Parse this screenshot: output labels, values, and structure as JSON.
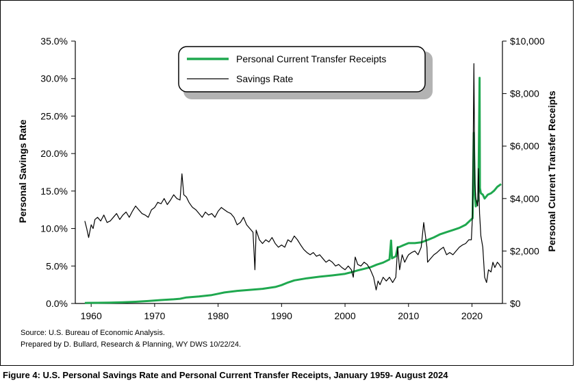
{
  "colors": {
    "transfers": "#1fa84f",
    "savings": "#000000",
    "legend_shadow": "#9a9a9a"
  },
  "source_line1": "Source: U.S. Bureau of Economic Analysis.",
  "source_line2": "Prepared by D. Bullard, Research & Planning, WY DWS 10/22/24.",
  "caption": "Figure 4: U.S. Personal Savings Rate and Personal Current Transfer Receipts, January 1959- August 2024",
  "chart_data": {
    "type": "line",
    "title": "",
    "xlabel": "",
    "ylabel": "Personal Savings Rate",
    "y2label": "Personal Current Transfer Receipts",
    "xlim": [
      1957.5,
      2024.8
    ],
    "ylim": [
      0,
      35
    ],
    "y2lim": [
      0,
      10000
    ],
    "grid": false,
    "legend_position": "top-center",
    "x_tick_labels": [
      "1960",
      "1970",
      "1980",
      "1990",
      "2000",
      "2010",
      "2020"
    ],
    "x_tick_values": [
      1960,
      1970,
      1980,
      1990,
      2000,
      2010,
      2020
    ],
    "y_tick_labels": [
      "0.0%",
      "5.0%",
      "10.0%",
      "15.0%",
      "20.0%",
      "25.0%",
      "30.0%",
      "35.0%"
    ],
    "y_tick_values": [
      0,
      5,
      10,
      15,
      20,
      25,
      30,
      35
    ],
    "y2_tick_labels": [
      "$0",
      "$2,000",
      "$4,000",
      "$6,000",
      "$8,000",
      "$10,000"
    ],
    "y2_tick_values": [
      0,
      2000,
      4000,
      6000,
      8000,
      10000
    ],
    "series": [
      {
        "name": "Personal Current Transfer Receipts",
        "axis": "right",
        "x": [
          1959.0,
          1961.0,
          1963.0,
          1965.0,
          1967.0,
          1969.0,
          1971.0,
          1973.0,
          1974.0,
          1975.0,
          1977.0,
          1979.0,
          1980.0,
          1981.0,
          1983.0,
          1985.0,
          1987.0,
          1989.0,
          1990.0,
          1991.0,
          1992.0,
          1994.0,
          1996.0,
          1998.0,
          2000.0,
          2001.0,
          2002.0,
          2003.0,
          2004.0,
          2005.0,
          2006.0,
          2007.0,
          2007.25,
          2007.4,
          2008.0,
          2008.3,
          2008.5,
          2009.0,
          2010.0,
          2011.0,
          2012.0,
          2013.0,
          2014.0,
          2015.0,
          2016.0,
          2017.0,
          2018.0,
          2019.0,
          2020.1,
          2020.28,
          2020.45,
          2020.6,
          2020.9,
          2021.0,
          2021.2,
          2021.25,
          2021.4,
          2021.7,
          2022.0,
          2022.5,
          2023.0,
          2023.5,
          2024.0,
          2024.6
        ],
        "y": [
          20,
          25,
          35,
          45,
          65,
          95,
          130,
          160,
          180,
          230,
          270,
          320,
          370,
          420,
          480,
          520,
          560,
          630,
          700,
          800,
          880,
          960,
          1020,
          1070,
          1130,
          1190,
          1260,
          1320,
          1380,
          1480,
          1560,
          1680,
          2400,
          1720,
          1800,
          2150,
          2150,
          2200,
          2300,
          2300,
          2330,
          2420,
          2520,
          2640,
          2720,
          2800,
          2880,
          3000,
          3250,
          6500,
          4200,
          3700,
          3900,
          3950,
          8600,
          4400,
          4200,
          4150,
          4000,
          4150,
          4200,
          4300,
          4450,
          4550
        ]
      },
      {
        "name": "Savings Rate",
        "axis": "left",
        "x": [
          1959.0,
          1959.3,
          1959.6,
          1960.0,
          1960.3,
          1960.6,
          1961.0,
          1961.5,
          1962.0,
          1962.5,
          1963.0,
          1963.5,
          1964.0,
          1964.5,
          1965.0,
          1965.5,
          1966.0,
          1966.5,
          1967.0,
          1967.5,
          1968.0,
          1968.5,
          1969.0,
          1969.5,
          1970.0,
          1970.5,
          1971.0,
          1971.5,
          1972.0,
          1972.5,
          1973.0,
          1973.5,
          1974.0,
          1974.3,
          1974.6,
          1975.0,
          1975.4,
          1975.8,
          1976.0,
          1976.5,
          1977.0,
          1977.5,
          1978.0,
          1978.5,
          1979.0,
          1979.5,
          1980.0,
          1980.5,
          1981.0,
          1981.5,
          1982.0,
          1982.5,
          1983.0,
          1983.5,
          1984.0,
          1984.5,
          1985.0,
          1985.5,
          1985.8,
          1986.0,
          1986.5,
          1987.0,
          1987.5,
          1988.0,
          1988.5,
          1989.0,
          1989.5,
          1990.0,
          1990.5,
          1991.0,
          1991.5,
          1992.0,
          1992.5,
          1993.0,
          1993.5,
          1994.0,
          1994.5,
          1995.0,
          1995.5,
          1996.0,
          1996.5,
          1997.0,
          1997.5,
          1998.0,
          1998.5,
          1999.0,
          1999.5,
          2000.0,
          2000.5,
          2001.0,
          2001.3,
          2001.6,
          2002.0,
          2002.5,
          2003.0,
          2003.5,
          2004.0,
          2004.5,
          2004.9,
          2005.2,
          2005.5,
          2006.0,
          2006.5,
          2007.0,
          2007.5,
          2008.0,
          2008.3,
          2008.6,
          2009.0,
          2009.4,
          2009.8,
          2010.0,
          2010.5,
          2011.0,
          2011.5,
          2012.0,
          2012.4,
          2012.9,
          2013.0,
          2013.5,
          2014.0,
          2014.5,
          2015.0,
          2015.5,
          2016.0,
          2016.5,
          2017.0,
          2017.5,
          2018.0,
          2018.5,
          2019.0,
          2019.5,
          2019.9,
          2020.1,
          2020.3,
          2020.45,
          2020.6,
          2020.9,
          2021.0,
          2021.2,
          2021.4,
          2021.7,
          2022.0,
          2022.3,
          2022.6,
          2023.0,
          2023.3,
          2023.6,
          2024.0,
          2024.3,
          2024.6
        ],
        "y": [
          11.0,
          10.0,
          8.8,
          10.5,
          10.0,
          11.2,
          11.5,
          11.0,
          11.8,
          10.8,
          11.0,
          11.5,
          12.0,
          11.2,
          11.8,
          12.2,
          11.5,
          12.3,
          13.0,
          12.5,
          12.0,
          11.8,
          11.5,
          12.5,
          12.8,
          13.5,
          13.3,
          14.0,
          13.2,
          13.8,
          14.5,
          14.0,
          13.8,
          17.3,
          14.5,
          14.2,
          13.5,
          13.0,
          12.8,
          12.5,
          12.0,
          11.5,
          12.2,
          11.8,
          12.0,
          11.5,
          12.3,
          12.8,
          12.5,
          12.2,
          12.0,
          11.5,
          10.5,
          10.8,
          11.5,
          10.5,
          10.0,
          9.5,
          4.5,
          9.8,
          8.5,
          8.0,
          8.5,
          8.2,
          8.8,
          8.0,
          7.5,
          7.8,
          7.5,
          8.5,
          8.2,
          9.0,
          8.5,
          7.8,
          7.2,
          6.8,
          6.5,
          6.8,
          6.3,
          6.5,
          6.0,
          5.5,
          5.8,
          5.5,
          5.0,
          5.2,
          4.8,
          4.5,
          5.0,
          4.5,
          3.5,
          6.2,
          5.2,
          5.0,
          5.5,
          5.2,
          4.5,
          3.5,
          1.8,
          3.0,
          2.5,
          3.5,
          3.0,
          3.5,
          2.8,
          3.5,
          7.5,
          4.5,
          6.5,
          5.5,
          6.2,
          6.5,
          6.8,
          7.0,
          6.5,
          7.5,
          10.8,
          7.5,
          5.5,
          6.0,
          6.5,
          6.8,
          7.2,
          7.5,
          6.5,
          6.8,
          6.5,
          7.0,
          7.5,
          7.8,
          8.0,
          8.5,
          8.5,
          12.0,
          32.0,
          16.0,
          14.0,
          13.0,
          18.0,
          12.0,
          9.0,
          7.5,
          3.5,
          2.8,
          4.5,
          4.2,
          5.5,
          4.8,
          5.5,
          5.2,
          4.8
        ]
      }
    ]
  }
}
